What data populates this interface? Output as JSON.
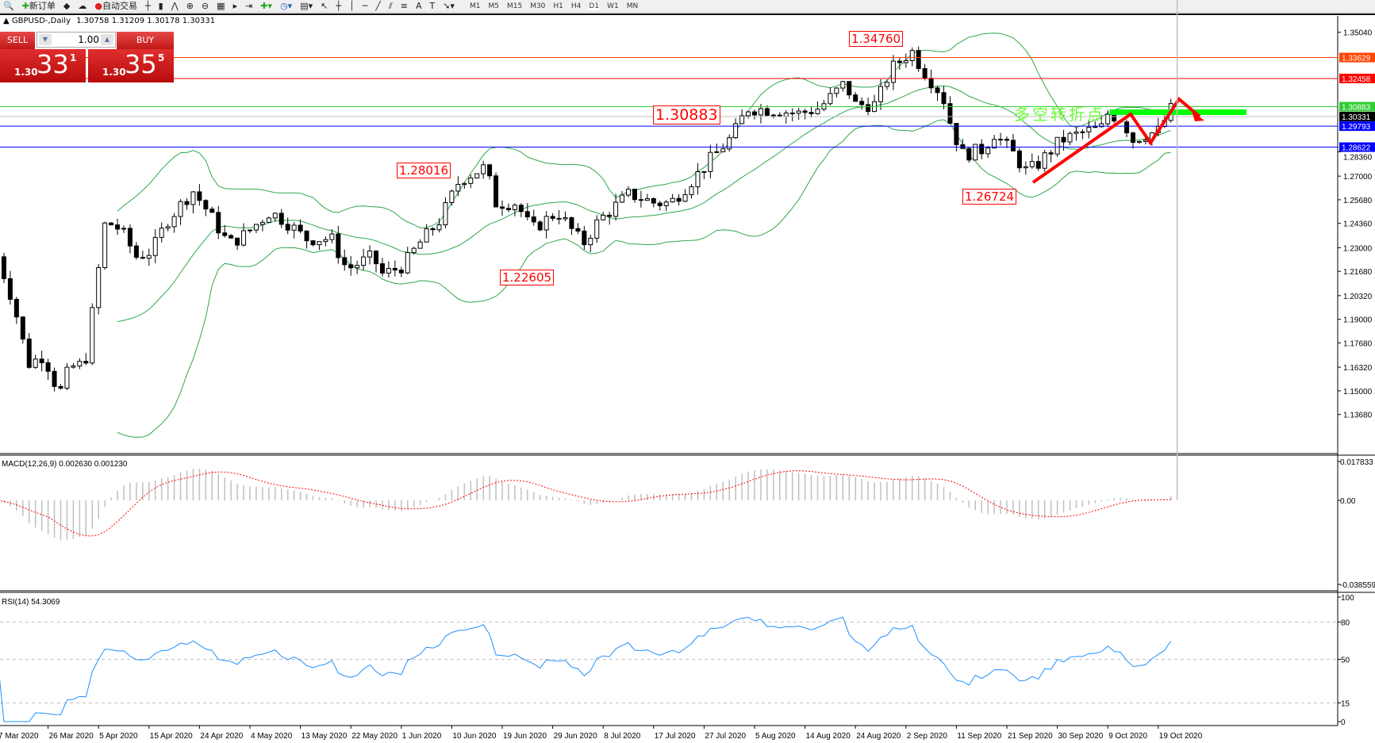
{
  "toolbar": {
    "new_order": "新订单",
    "auto_trading": "自动交易",
    "timeframes": [
      "M1",
      "M5",
      "M15",
      "M30",
      "H1",
      "H4",
      "D1",
      "W1",
      "MN"
    ],
    "active_timeframe": "D1"
  },
  "header": {
    "symbol": "GBPUSD-,Daily",
    "ohlc": "1.30758 1.31209 1.30178 1.30331"
  },
  "trade_panel": {
    "sell_label": "SELL",
    "buy_label": "BUY",
    "lot": "1.00",
    "sell_prefix": "1.30",
    "sell_big": "33",
    "sell_sup": "1",
    "buy_prefix": "1.30",
    "buy_big": "35",
    "buy_sup": "5",
    "button_color": "#d42020"
  },
  "chart_data": [
    {
      "type": "candlestick",
      "symbol": "GBPUSD-",
      "timeframe": "Daily",
      "ylim": [
        1.1368,
        1.3504
      ],
      "y_ticks": [
        "1.35040",
        "1.33629",
        "1.32458",
        "1.30883",
        "1.30331",
        "1.29793",
        "1.28622",
        "1.28360",
        "1.27000",
        "1.25680",
        "1.24360",
        "1.23000",
        "1.21680",
        "1.20320",
        "1.19000",
        "1.17680",
        "1.16320",
        "1.15000",
        "1.13680"
      ],
      "x_ticks": [
        "7 Mar 2020",
        "26 Mar 2020",
        "5 Apr 2020",
        "15 Apr 2020",
        "24 Apr 2020",
        "4 May 2020",
        "13 May 2020",
        "22 May 2020",
        "1 Jun 2020",
        "10 Jun 2020",
        "19 Jun 2020",
        "29 Jun 2020",
        "8 Jul 2020",
        "17 Jul 2020",
        "27 Jul 2020",
        "5 Aug 2020",
        "14 Aug 2020",
        "24 Aug 2020",
        "2 Sep 2020",
        "11 Sep 2020",
        "21 Sep 2020",
        "30 Sep 2020",
        "9 Oct 2020",
        "19 Oct 2020"
      ],
      "last_bar": {
        "open": 1.30758,
        "high": 1.31209,
        "low": 1.30178,
        "close": 1.30331
      },
      "approx_close_path": [
        [
          "2020-03-07",
          1.225
        ],
        [
          "2020-03-10",
          1.2
        ],
        [
          "2020-03-13",
          1.165
        ],
        [
          "2020-03-16",
          1.17
        ],
        [
          "2020-03-19",
          1.148
        ],
        [
          "2020-03-21",
          1.163
        ],
        [
          "2020-03-24",
          1.165
        ],
        [
          "2020-03-26",
          1.205
        ],
        [
          "2020-03-28",
          1.245
        ],
        [
          "2020-03-31",
          1.24
        ],
        [
          "2020-04-03",
          1.225
        ],
        [
          "2020-04-06",
          1.228
        ],
        [
          "2020-04-09",
          1.245
        ],
        [
          "2020-04-14",
          1.262
        ],
        [
          "2020-04-17",
          1.25
        ],
        [
          "2020-04-21",
          1.232
        ],
        [
          "2020-04-24",
          1.237
        ],
        [
          "2020-04-29",
          1.25
        ],
        [
          "2020-05-02",
          1.245
        ],
        [
          "2020-05-06",
          1.235
        ],
        [
          "2020-05-11",
          1.235
        ],
        [
          "2020-05-14",
          1.218
        ],
        [
          "2020-05-19",
          1.225
        ],
        [
          "2020-05-21",
          1.215
        ],
        [
          "2020-05-25",
          1.22
        ],
        [
          "2020-05-28",
          1.232
        ],
        [
          "2020-06-01",
          1.245
        ],
        [
          "2020-06-05",
          1.268
        ],
        [
          "2020-06-10",
          1.275
        ],
        [
          "2020-06-12",
          1.255
        ],
        [
          "2020-06-16",
          1.255
        ],
        [
          "2020-06-19",
          1.24
        ],
        [
          "2020-06-24",
          1.25
        ],
        [
          "2020-06-29",
          1.232
        ],
        [
          "2020-07-02",
          1.245
        ],
        [
          "2020-07-08",
          1.26
        ],
        [
          "2020-07-13",
          1.255
        ],
        [
          "2020-07-16",
          1.255
        ],
        [
          "2020-07-21",
          1.27
        ],
        [
          "2020-07-24",
          1.28
        ],
        [
          "2020-07-28",
          1.292
        ],
        [
          "2020-07-31",
          1.308
        ],
        [
          "2020-08-05",
          1.307
        ],
        [
          "2020-08-10",
          1.305
        ],
        [
          "2020-08-14",
          1.308
        ],
        [
          "2020-08-19",
          1.322
        ],
        [
          "2020-08-21",
          1.31
        ],
        [
          "2020-08-25",
          1.31
        ],
        [
          "2020-08-28",
          1.33
        ],
        [
          "2020-09-01",
          1.34
        ],
        [
          "2020-09-03",
          1.33
        ],
        [
          "2020-09-07",
          1.315
        ],
        [
          "2020-09-09",
          1.295
        ],
        [
          "2020-09-11",
          1.282
        ],
        [
          "2020-09-15",
          1.285
        ],
        [
          "2020-09-17",
          1.294
        ],
        [
          "2020-09-21",
          1.282
        ],
        [
          "2020-09-23",
          1.273
        ],
        [
          "2020-09-25",
          1.275
        ],
        [
          "2020-09-30",
          1.29
        ],
        [
          "2020-10-05",
          1.295
        ],
        [
          "2020-10-08",
          1.297
        ],
        [
          "2020-10-09",
          1.305
        ],
        [
          "2020-10-12",
          1.302
        ],
        [
          "2020-10-14",
          1.29
        ],
        [
          "2020-10-16",
          1.293
        ],
        [
          "2020-10-19",
          1.295
        ],
        [
          "2020-10-21",
          1.305
        ],
        [
          "2020-10-22",
          1.31
        ],
        [
          "2020-10-23",
          1.30331
        ]
      ],
      "indicators": [
        "Bollinger Bands"
      ],
      "horizontal_levels": [
        {
          "price": 1.33629,
          "label": "1.33629",
          "color": "#ff4500"
        },
        {
          "price": 1.32458,
          "label": "1.32458",
          "color": "#ff0000"
        },
        {
          "price": 1.30883,
          "label": "1.30883",
          "color": "#32cd32"
        },
        {
          "price": 1.30331,
          "label": "1.30331",
          "color": "#c0c0c0",
          "label_bg": "#000000"
        },
        {
          "price": 1.29793,
          "label": "1.29793",
          "color": "#0000ff"
        },
        {
          "price": 1.28622,
          "label": "1.28622",
          "color": "#0000ff"
        }
      ],
      "annotations": [
        {
          "text": "1.34760",
          "price": 1.3476
        },
        {
          "text": "1.30883",
          "price": 1.30883
        },
        {
          "text": "1.28016",
          "price": 1.28016
        },
        {
          "text": "1.22605",
          "price": 1.22605
        },
        {
          "text": "1.26724",
          "price": 1.26724
        },
        {
          "text": "多空转折点",
          "color": "#66ff33"
        }
      ],
      "colors": {
        "band": "#2ea84a",
        "bull_body": "#ffffff",
        "bear_body": "#000000",
        "trend_arrow": "#ff0000",
        "zone_bar": "#00ff00"
      }
    },
    {
      "type": "macd",
      "label": "MACD(12,26,9) 0.002630 0.001230",
      "ylim": [
        -0.038559,
        0.017833
      ],
      "y_ticks": [
        "0.017833",
        "0.00",
        "-0.038559"
      ],
      "colors": {
        "histogram": "#c0c0c0",
        "signal": "#ff0000"
      }
    },
    {
      "type": "line",
      "label": "RSI(14) 54.3069",
      "ylim": [
        0,
        100
      ],
      "y_ticks": [
        "100",
        "80",
        "50",
        "15",
        "0"
      ],
      "levels": [
        80,
        50,
        15
      ],
      "colors": {
        "line": "#1e90ff",
        "levels": "#c0c0c0"
      }
    }
  ]
}
